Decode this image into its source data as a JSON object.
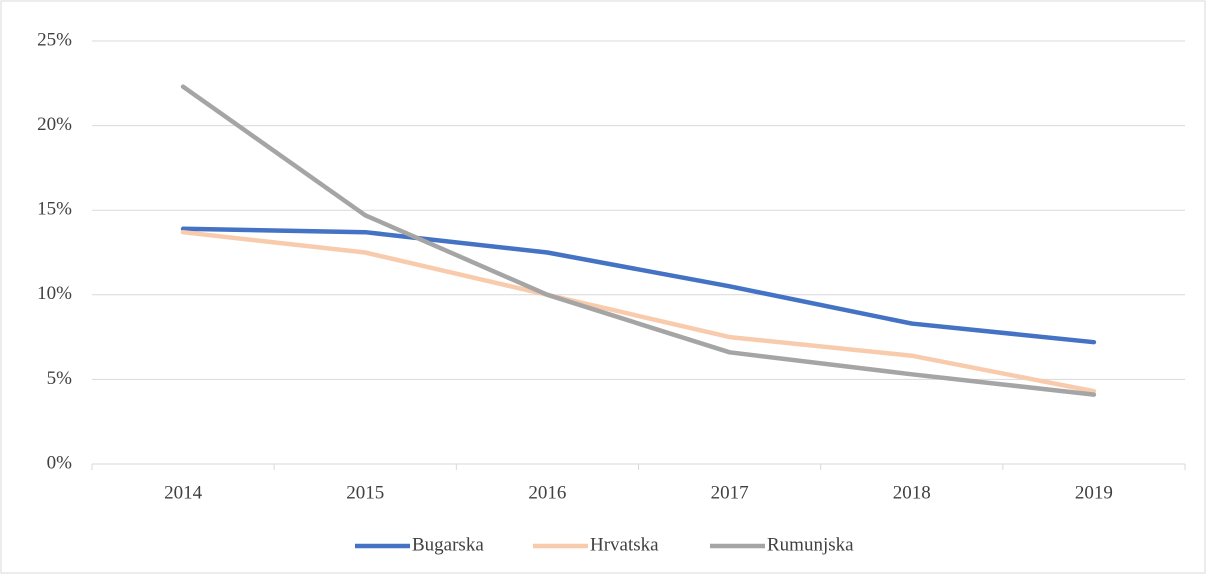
{
  "chart_data": {
    "type": "line",
    "categories": [
      "2014",
      "2015",
      "2016",
      "2017",
      "2018",
      "2019"
    ],
    "series": [
      {
        "name": "Bugarska",
        "color": "#4472c4",
        "values": [
          13.9,
          13.7,
          12.5,
          10.5,
          8.3,
          7.2
        ]
      },
      {
        "name": "Hrvatska",
        "color": "#f8cbad",
        "values": [
          13.7,
          12.5,
          10.0,
          7.5,
          6.4,
          4.3
        ]
      },
      {
        "name": "Rumunjska",
        "color": "#a5a5a5",
        "values": [
          22.3,
          14.7,
          10.0,
          6.6,
          5.3,
          4.1
        ]
      }
    ],
    "ylim": [
      0,
      25
    ],
    "yticks": [
      {
        "value": 0,
        "label": "0%"
      },
      {
        "value": 5,
        "label": "5%"
      },
      {
        "value": 10,
        "label": "10%"
      },
      {
        "value": 15,
        "label": "15%"
      },
      {
        "value": 20,
        "label": "20%"
      },
      {
        "value": 25,
        "label": "25%"
      }
    ],
    "grid": true,
    "legend": "bottom"
  }
}
